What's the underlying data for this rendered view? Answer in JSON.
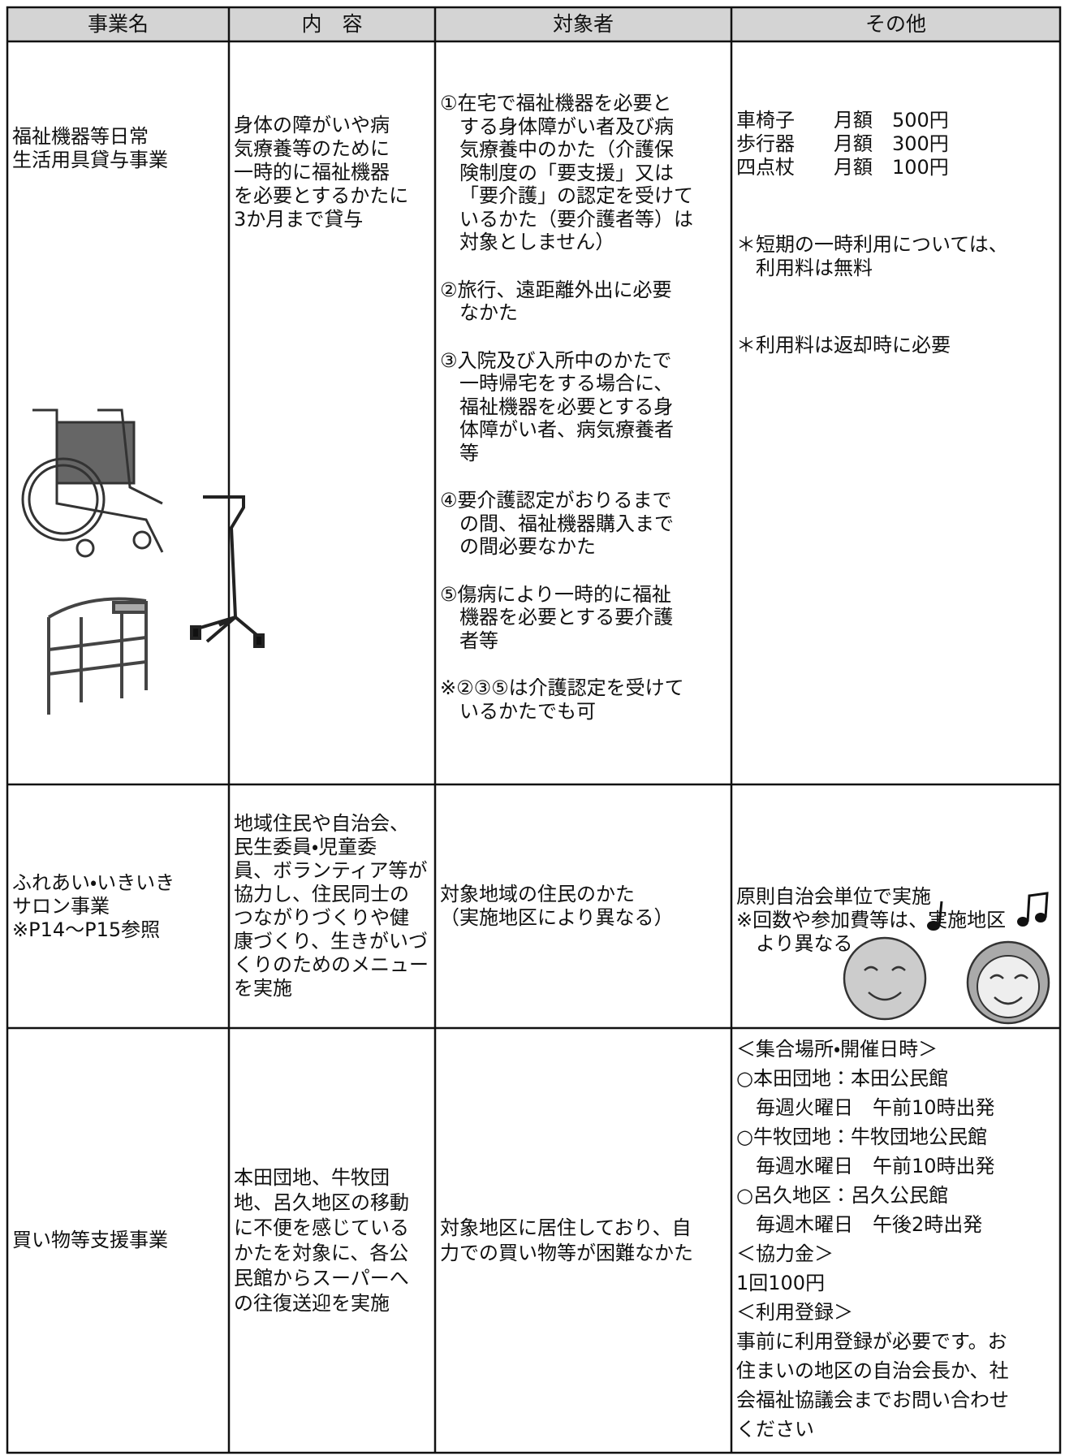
{
  "table": {
    "headers": [
      "事業名",
      "内　容",
      "対象者",
      "その他"
    ],
    "rows": [
      {
        "cells": [
          {
            "paragraphs": [
              {
                "lines": [
                  "福祉機器等日常",
                  "生活用具貸与事業"
                ],
                "hanging": false
              }
            ]
          },
          {
            "paragraphs": [
              {
                "lines": [
                  "身体の障がいや病",
                  "気療養等のために",
                  "一時的に福祉機器",
                  "を必要とするかたに",
                  "3か月まで貸与"
                ],
                "hanging": false
              }
            ]
          },
          {
            "paragraphs": [
              {
                "lines": [
                  "①在宅で福祉機器を必要と",
                  "する身体障がい者及び病",
                  "気療養中のかた（介護保",
                  "険制度の「要支援」又は",
                  "「要介護」の認定を受けて",
                  "いるかた（要介護者等）は",
                  "対象としません）"
                ],
                "hanging": true
              },
              {
                "lines": [
                  "②旅行、遠距離外出に必要",
                  "なかた"
                ],
                "hanging": true
              },
              {
                "lines": [
                  "③入院及び入所中のかたで",
                  "一時帰宅をする場合に、",
                  "福祉機器を必要とする身",
                  "体障がい者、病気療養者",
                  "等"
                ],
                "hanging": true
              },
              {
                "lines": [
                  "④要介護認定がおりるまで",
                  "の間、福祉機器購入まで",
                  "の間必要なかた"
                ],
                "hanging": true
              },
              {
                "lines": [
                  "⑤傷病により一時的に福祉",
                  "機器を必要とする要介護",
                  "者等"
                ],
                "hanging": true
              },
              {
                "lines": [
                  "※②③⑤は介護認定を受けて",
                  "いるかたでも可"
                ],
                "hanging": true
              }
            ]
          },
          {
            "paragraphs": [
              {
                "lines": [
                  "車椅子　　月額　500円",
                  "歩行器　　月額　300円",
                  "四点杖　　月額　100円"
                ],
                "hanging": false
              },
              {
                "lines": [
                  "＊短期の一時利用については、",
                  "利用料は無料"
                ],
                "hanging": true
              },
              {
                "lines": [
                  "＊利用料は返却時に必要"
                ],
                "hanging": true
              }
            ]
          }
        ]
      },
      {
        "cells": [
          {
            "paragraphs": [
              {
                "lines": [
                  "ふれあい・いきいき",
                  "サロン事業",
                  "※P14～P15参照"
                ],
                "hanging": false
              }
            ]
          },
          {
            "paragraphs": [
              {
                "lines": [
                  "地域住民や自治会、",
                  "民生委員・児童委",
                  "員、ボランティア等が",
                  "協力し、住民同士の",
                  "つながりづくりや健",
                  "康づくり、生きがいづ",
                  "くりのためのメニュー",
                  "を実施"
                ],
                "hanging": false
              }
            ]
          },
          {
            "paragraphs": [
              {
                "lines": [
                  "対象地域の住民のかた",
                  "（実施地区により異なる）"
                ],
                "hanging": false
              }
            ]
          },
          {
            "paragraphs": [
              {
                "lines": [
                  "原則自治会単位で実施"
                ],
                "hanging": false
              },
              {
                "lines": [
                  "※回数や参加費等は、実施地区",
                  "より異なる"
                ],
                "hanging": true
              }
            ]
          }
        ]
      },
      {
        "cells": [
          {
            "paragraphs": [
              {
                "lines": [
                  "買い物等支援事業"
                ],
                "hanging": false
              }
            ]
          },
          {
            "paragraphs": [
              {
                "lines": [
                  "本田団地、牛牧団",
                  "地、呂久地区の移動",
                  "に不便を感じている",
                  "かたを対象に、各公",
                  "民館からスーパーへ",
                  "の往復送迎を実施"
                ],
                "hanging": false
              }
            ]
          },
          {
            "paragraphs": [
              {
                "lines": [
                  "対象地区に居住しており、自",
                  "力での買い物等が困難なかた"
                ],
                "hanging": false
              }
            ]
          },
          {
            "paragraphs": [
              {
                "lines": [
                  "＜集合場所・開催日時＞"
                ],
                "hanging": false
              },
              {
                "lines": [
                  "○本田団地：本田公民館",
                  "毎週火曜日　午前10時出発"
                ],
                "hanging": true
              },
              {
                "lines": [
                  "○牛牧団地：牛牧団地公民館",
                  "毎週水曜日　午前10時出発"
                ],
                "hanging": true
              },
              {
                "lines": [
                  "○呂久地区：呂久公民館",
                  "毎週木曜日　午後2時出発"
                ],
                "hanging": true
              },
              {
                "lines": [
                  "＜協力金＞",
                  "1回100円",
                  "＜利用登録＞",
                  "事前に利用登録が必要です。お",
                  "住まいの地区の自治会長か、社",
                  "会福祉協議会までお問い合わせ",
                  "ください"
                ],
                "hanging": false
              }
            ]
          }
        ]
      }
    ]
  }
}
